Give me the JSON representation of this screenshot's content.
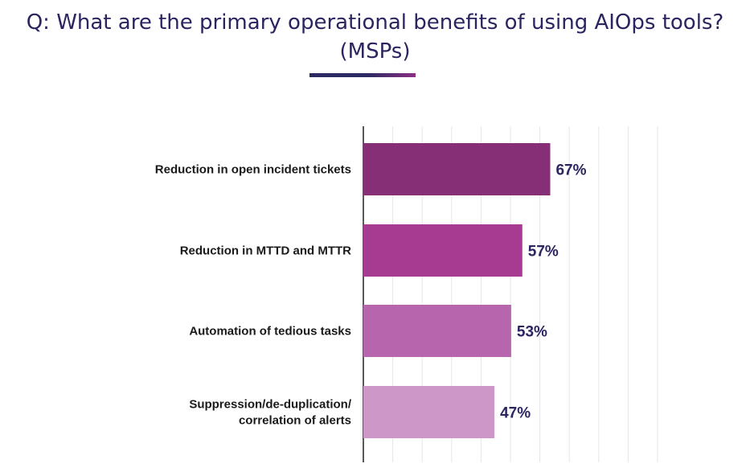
{
  "header": {
    "title_line1": "Q: What are the primary operational benefits of using AIOps tools?",
    "title_line2": "(MSPs)"
  },
  "chart_data": {
    "type": "bar",
    "orientation": "horizontal",
    "title": "Q: What are the primary operational benefits of using AIOps tools? (MSPs)",
    "categories": [
      [
        "Reduction in open incident tickets"
      ],
      [
        "Reduction in MTTD and MTTR"
      ],
      [
        "Automation of tedious tasks"
      ],
      [
        "Suppression/de-duplication/",
        "correlation of alerts"
      ]
    ],
    "values": [
      67,
      57,
      53,
      47
    ],
    "value_labels": [
      "67%",
      "57%",
      "53%",
      "47%"
    ],
    "colors": [
      "#862f77",
      "#a73b91",
      "#b766ad",
      "#cd97c7"
    ],
    "xlim": [
      0,
      100
    ],
    "grid": true,
    "xlabel": "",
    "ylabel": ""
  }
}
